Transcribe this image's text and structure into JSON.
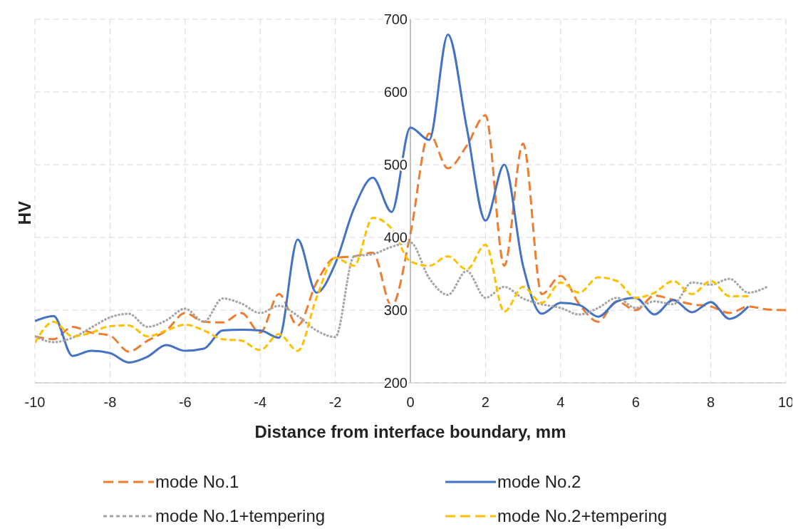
{
  "chart_data": {
    "type": "line",
    "xlabel": "Distance from interface boundary, mm",
    "ylabel": "HV",
    "xlim": [
      -10,
      10
    ],
    "xticks": [
      -10,
      -8,
      -6,
      -4,
      -2,
      0,
      2,
      4,
      6,
      8,
      10
    ],
    "ylim": [
      200,
      700
    ],
    "yticks": [
      200,
      300,
      400,
      500,
      600,
      700
    ],
    "grid": true,
    "legend": "bottom",
    "marker": "none",
    "series": [
      {
        "name": "mode No.1",
        "color": "#ed7d31",
        "line_style": "dashed",
        "x": [
          -10,
          -9.5,
          -9,
          -8.5,
          -8,
          -7.5,
          -7,
          -6.5,
          -6,
          -5.5,
          -5,
          -4.5,
          -4,
          -3.5,
          -3,
          -2.5,
          -2,
          -1.5,
          -1,
          -0.5,
          0,
          0.5,
          1,
          1.5,
          2,
          2.5,
          3,
          3.5,
          4,
          4.5,
          5,
          5.5,
          6,
          6.5,
          7,
          7.5,
          8,
          8.5,
          9,
          9.5,
          10
        ],
        "values": [
          264,
          260,
          277,
          269,
          265,
          243,
          258,
          272,
          296,
          284,
          283,
          296,
          269,
          322,
          279,
          338,
          372,
          374,
          379,
          306,
          405,
          543,
          495,
          526,
          568,
          361,
          529,
          322,
          347,
          308,
          284,
          312,
          300,
          320,
          314,
          308,
          305,
          296,
          305,
          301,
          300
        ]
      },
      {
        "name": "mode No.2",
        "color": "#4472c4",
        "line_style": "solid",
        "x": [
          -10,
          -9.5,
          -9,
          -8.5,
          -8,
          -7.5,
          -7,
          -6.5,
          -6,
          -5.5,
          -5,
          -4.5,
          -4,
          -3.5,
          -3,
          -2.5,
          -2,
          -1.5,
          -1,
          -0.5,
          0,
          0.5,
          1,
          1.5,
          2,
          2.5,
          3,
          3.5,
          4,
          4.5,
          5,
          5.5,
          6,
          6.5,
          7,
          7.5,
          8,
          8.5,
          9
        ],
        "values": [
          285,
          292,
          237,
          244,
          241,
          228,
          236,
          252,
          244,
          247,
          272,
          273,
          272,
          262,
          397,
          324,
          364,
          440,
          482,
          435,
          551,
          534,
          679,
          551,
          423,
          500,
          361,
          295,
          310,
          307,
          291,
          312,
          317,
          294,
          314,
          297,
          311,
          288,
          305
        ]
      },
      {
        "name": "mode No.1+tempering",
        "color": "#a5a5a5",
        "line_style": "dotted",
        "x": [
          -10,
          -9.5,
          -9,
          -8.5,
          -8,
          -7.5,
          -7,
          -6.5,
          -6,
          -5.5,
          -5,
          -4.5,
          -4,
          -3.5,
          -3,
          -2.5,
          -2,
          -1.5,
          -1,
          -0.5,
          0,
          0.5,
          1,
          1.5,
          2,
          2.5,
          3,
          3.5,
          4,
          4.5,
          5,
          5.5,
          6,
          6.5,
          7,
          7.5,
          8,
          8.5,
          9,
          9.5
        ],
        "values": [
          264,
          256,
          262,
          276,
          290,
          295,
          277,
          286,
          302,
          284,
          316,
          309,
          296,
          306,
          292,
          272,
          263,
          374,
          377,
          387,
          393,
          344,
          321,
          354,
          317,
          332,
          316,
          308,
          303,
          294,
          303,
          317,
          303,
          312,
          308,
          338,
          335,
          343,
          324,
          332
        ]
      },
      {
        "name": "mode No.2+tempering",
        "color": "#ffc000",
        "line_style": "dashed",
        "x": [
          -10,
          -9.5,
          -9,
          -8.5,
          -8,
          -7.5,
          -7,
          -6.5,
          -6,
          -5.5,
          -5,
          -4.5,
          -4,
          -3.5,
          -3,
          -2.5,
          -2,
          -1.5,
          -1,
          -0.5,
          0,
          0.5,
          1,
          1.5,
          2,
          2.5,
          3,
          3.5,
          4,
          4.5,
          5,
          5.5,
          6,
          6.5,
          7,
          7.5,
          8,
          8.5,
          9
        ],
        "values": [
          255,
          284,
          264,
          269,
          278,
          279,
          264,
          272,
          280,
          272,
          260,
          258,
          245,
          267,
          244,
          317,
          372,
          361,
          427,
          412,
          367,
          361,
          374,
          356,
          390,
          298,
          332,
          310,
          338,
          324,
          345,
          340,
          317,
          324,
          340,
          322,
          340,
          319,
          319
        ]
      }
    ]
  }
}
